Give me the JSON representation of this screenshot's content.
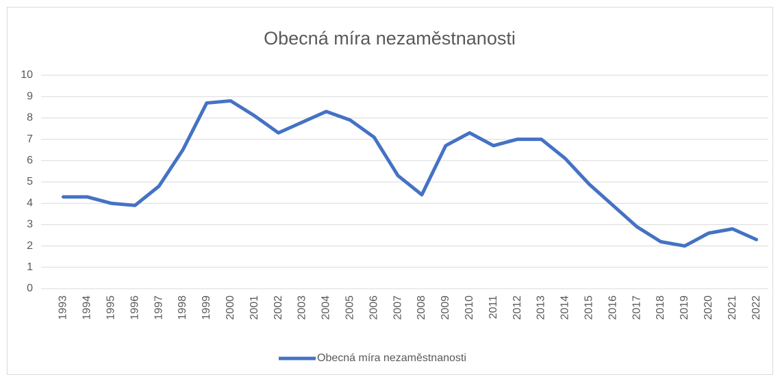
{
  "chart_data": {
    "type": "line",
    "title": "Obecná míra nezaměstnanosti",
    "categories": [
      "1993",
      "1994",
      "1995",
      "1996",
      "1997",
      "1998",
      "1999",
      "2000",
      "2001",
      "2002",
      "2003",
      "2004",
      "2005",
      "2006",
      "2007",
      "2008",
      "2009",
      "2010",
      "2011",
      "2012",
      "2013",
      "2014",
      "2015",
      "2016",
      "2017",
      "2018",
      "2019",
      "2020",
      "2021",
      "2022"
    ],
    "series": [
      {
        "name": "Obecná míra nezaměstnanosti",
        "color": "#4472c4",
        "values": [
          4.3,
          4.3,
          4.0,
          3.9,
          4.8,
          6.5,
          8.7,
          8.8,
          8.1,
          7.3,
          7.8,
          8.3,
          7.9,
          7.1,
          5.3,
          4.4,
          6.7,
          7.3,
          6.7,
          7.0,
          7.0,
          6.1,
          4.9,
          3.9,
          2.9,
          2.2,
          2.0,
          2.6,
          2.8,
          2.3
        ]
      }
    ],
    "ylim": [
      0,
      10
    ],
    "yticks": [
      0,
      1,
      2,
      3,
      4,
      5,
      6,
      7,
      8,
      9,
      10
    ],
    "grid": true,
    "legend": "bottom"
  }
}
